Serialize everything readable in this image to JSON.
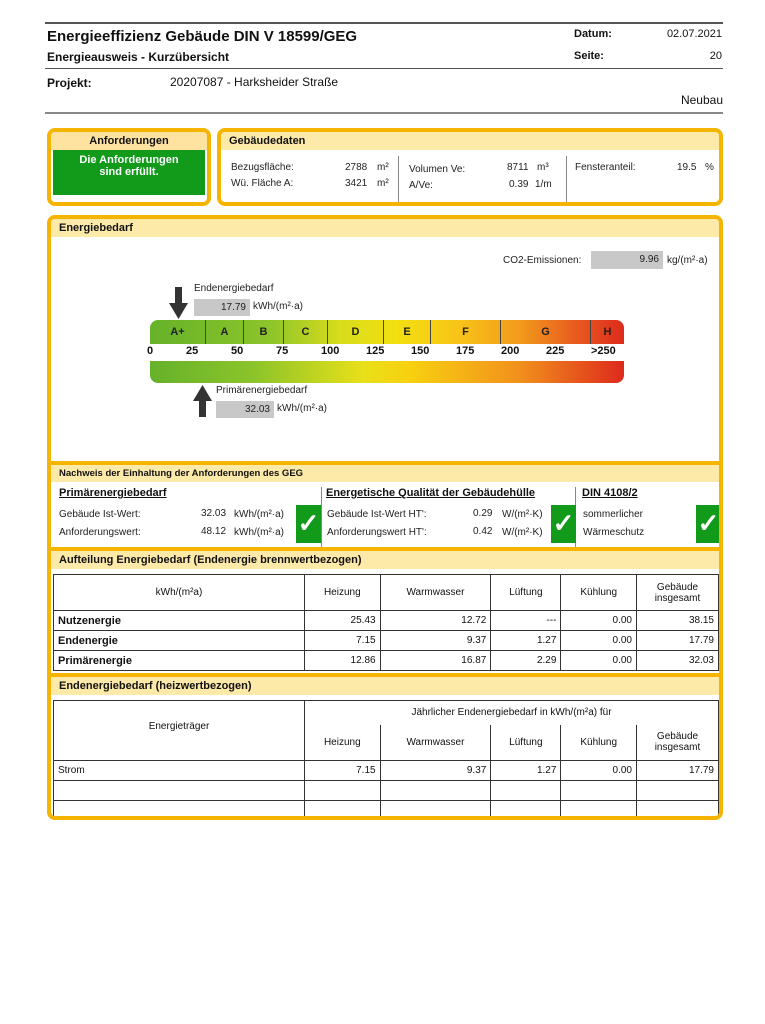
{
  "header": {
    "title": "Energieeffizienz Gebäude DIN V 18599/GEG",
    "subtitle": "Energieausweis - Kurzübersicht",
    "datum_label": "Datum:",
    "datum": "02.07.2021",
    "seite_label": "Seite:",
    "seite": "20",
    "projekt_label": "Projekt:",
    "projekt": "20207087 - Harksheider Straße",
    "typ": "Neubau"
  },
  "anforderungen": {
    "title": "Anforderungen",
    "status": "Die Anforderungen sind erfüllt.",
    "status_color": "#129a1b"
  },
  "gebaeudedaten": {
    "title": "Gebäudedaten",
    "bezugsflaeche_label": "Bezugsfläche:",
    "bezugsflaeche": "2788",
    "wue_label": "Wü. Fläche A:",
    "wue": "3421",
    "unit_m2": "m²",
    "volumen_label": "Volumen Ve:",
    "volumen": "8711",
    "unit_m3": "m³",
    "ave_label": "A/Ve:",
    "ave": "0.39",
    "unit_1m": "1/m",
    "fenster_label": "Fensteranteil:",
    "fenster": "19.5",
    "unit_pct": "%"
  },
  "energiebedarf": {
    "title": "Energiebedarf",
    "co2_label": "CO2-Emissionen:",
    "co2": "9.96",
    "co2_unit": "kg/(m²·a)",
    "end_label": "Endenergiebedarf",
    "end_value": "17.79",
    "prim_label": "Primärenergiebedarf",
    "prim_value": "32.03",
    "unit": "kWh/(m²·a)",
    "classes": [
      "A+",
      "A",
      "B",
      "C",
      "D",
      "E",
      "F",
      "G",
      "H"
    ],
    "ticks": [
      "0",
      "25",
      "50",
      "75",
      "100",
      "125",
      "150",
      "175",
      "200",
      "225",
      ">250"
    ]
  },
  "nachweis": {
    "title": "Nachweis der Einhaltung der Anforderungen des GEG",
    "prim": {
      "title": "Primärenergiebedarf",
      "ist_label": "Gebäude Ist-Wert:",
      "ist": "32.03",
      "anf_label": "Anforderungswert:",
      "anf": "48.12",
      "unit": "kWh/(m²·a)"
    },
    "huelle": {
      "title": "Energetische Qualität der Gebäudehülle",
      "ist_label": "Gebäude Ist-Wert HT':",
      "ist": "0.29",
      "anf_label": "Anforderungswert HT':",
      "anf": "0.42",
      "unit": "W/(m²·K)"
    },
    "din": {
      "title": "DIN 4108/2",
      "line1": "sommerlicher",
      "line2": "Wärmeschutz"
    },
    "check": "✓"
  },
  "aufteilung": {
    "title": "Aufteilung Energiebedarf (Endenergie brennwertbezogen)",
    "unit_header": "kWh/(m²a)",
    "columns": [
      "Heizung",
      "Warmwasser",
      "Lüftung",
      "Kühlung",
      "Gebäude insgesamt"
    ],
    "rows": [
      {
        "label": "Nutzenergie",
        "values": [
          "25.43",
          "12.72",
          "---",
          "0.00",
          "38.15"
        ]
      },
      {
        "label": "Endenergie",
        "values": [
          "7.15",
          "9.37",
          "1.27",
          "0.00",
          "17.79"
        ]
      },
      {
        "label": "Primärenergie",
        "values": [
          "12.86",
          "16.87",
          "2.29",
          "0.00",
          "32.03"
        ]
      }
    ]
  },
  "heizwert": {
    "title": "Endenergiebedarf (heizwertbezogen)",
    "traeger_header": "Energieträger",
    "span_header": "Jährlicher Endenergiebedarf in kWh/(m²a) für",
    "columns": [
      "Heizung",
      "Warmwasser",
      "Lüftung",
      "Kühlung",
      "Gebäude insgesamt"
    ],
    "rows": [
      {
        "label": "Strom",
        "values": [
          "7.15",
          "9.37",
          "1.27",
          "0.00",
          "17.79"
        ]
      }
    ]
  }
}
